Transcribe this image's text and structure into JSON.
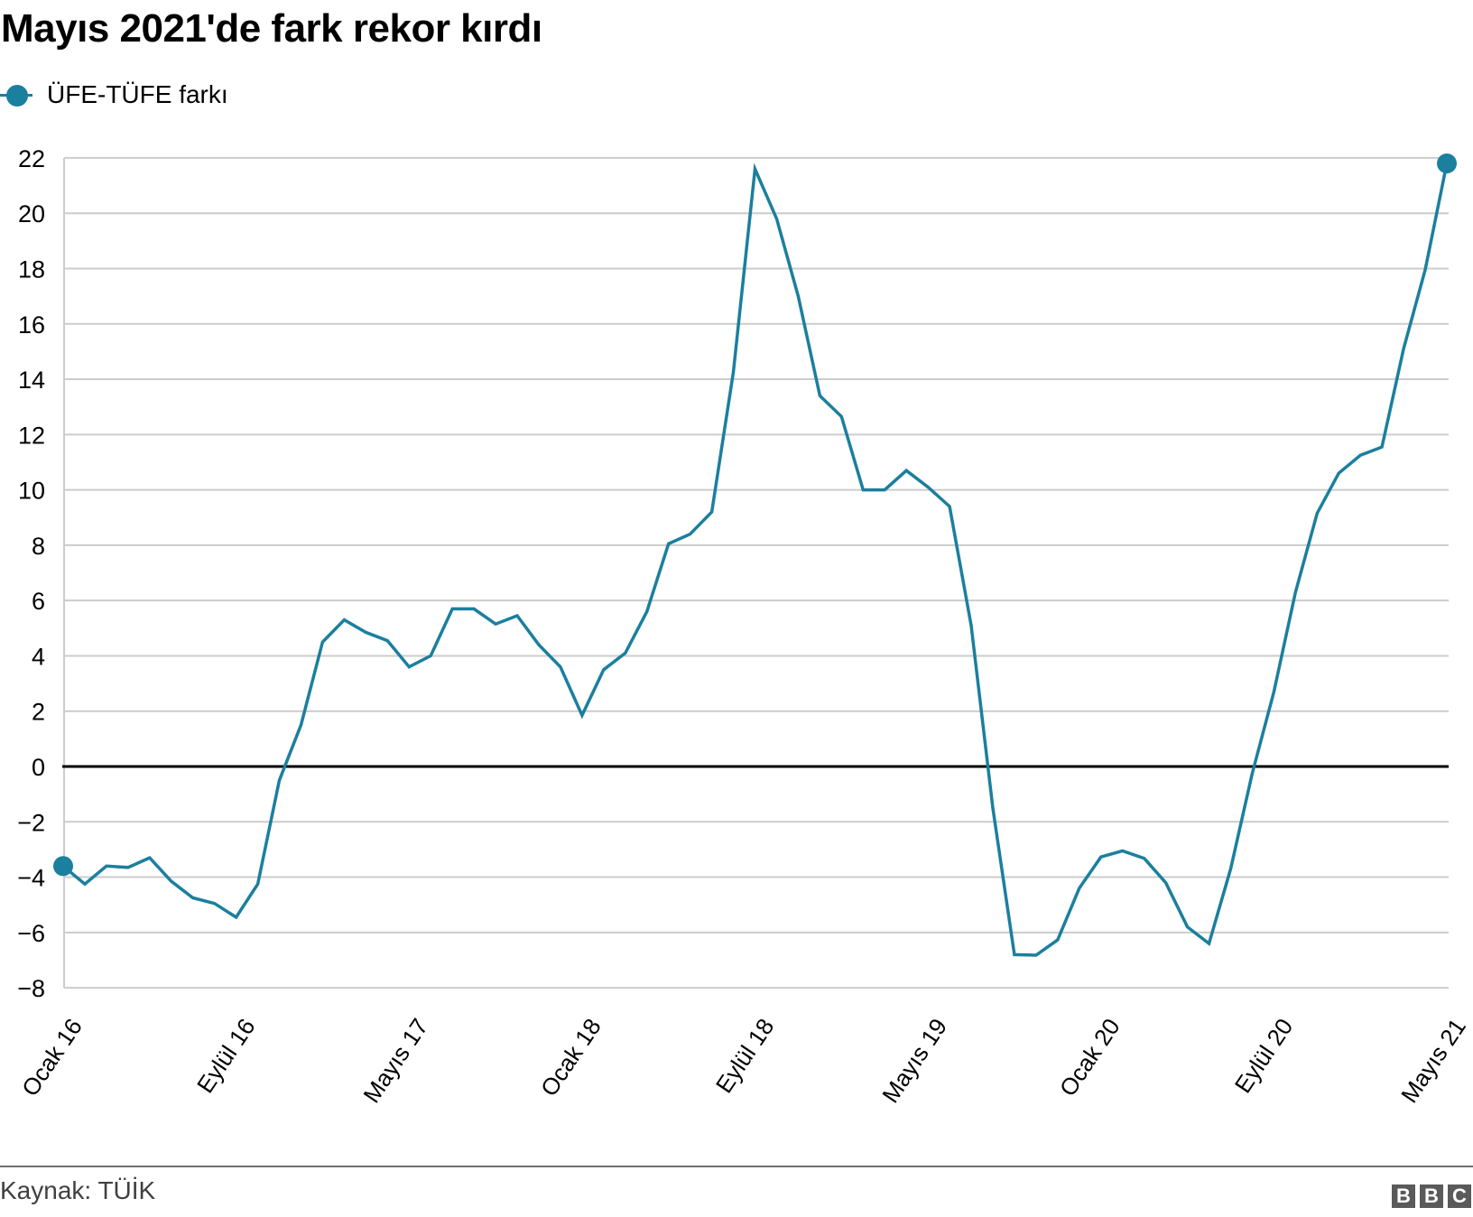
{
  "title": "Mayıs 2021'de fark rekor kırdı",
  "legend": {
    "label": "ÜFE-TÜFE farkı",
    "color": "#1b7f9e"
  },
  "footer": {
    "source": "Kaynak: TÜİK",
    "logo": [
      "B",
      "B",
      "C"
    ]
  },
  "colors": {
    "series": "#1b7f9e",
    "grid": "#cccccc",
    "zero": "#000000",
    "axis": "#cccccc"
  },
  "chart_data": {
    "type": "line",
    "title": "Mayıs 2021'de fark rekor kırdı",
    "xlabel": "",
    "ylabel": "",
    "ylim": [
      -8,
      22
    ],
    "yticks": [
      22,
      20,
      18,
      16,
      14,
      12,
      10,
      8,
      6,
      4,
      2,
      0,
      -2,
      -4,
      -6,
      -8
    ],
    "ytick_labels": [
      "22",
      "20",
      "18",
      "16",
      "14",
      "12",
      "10",
      "8",
      "6",
      "4",
      "2",
      "0",
      "−2",
      "−4",
      "−6",
      "−8"
    ],
    "xtick_labels": [
      "Ocak 16",
      "Eylül 16",
      "Mayıs 17",
      "Ocak 18",
      "Eylül 18",
      "Mayıs 19",
      "Ocak 20",
      "Eylül 20",
      "Mayıs 21"
    ],
    "xtick_index": [
      0,
      8,
      16,
      24,
      32,
      40,
      48,
      56,
      64
    ],
    "grid": true,
    "legend_position": "top-left",
    "markers_on": "first-and-last",
    "series": [
      {
        "name": "ÜFE-TÜFE farkı",
        "x": [
          "2016-01",
          "2016-02",
          "2016-03",
          "2016-04",
          "2016-05",
          "2016-06",
          "2016-07",
          "2016-08",
          "2016-09",
          "2016-10",
          "2016-11",
          "2016-12",
          "2017-01",
          "2017-02",
          "2017-03",
          "2017-04",
          "2017-05",
          "2017-06",
          "2017-07",
          "2017-08",
          "2017-09",
          "2017-10",
          "2017-11",
          "2017-12",
          "2018-01",
          "2018-02",
          "2018-03",
          "2018-04",
          "2018-05",
          "2018-06",
          "2018-07",
          "2018-08",
          "2018-09",
          "2018-10",
          "2018-11",
          "2018-12",
          "2019-01",
          "2019-02",
          "2019-03",
          "2019-04",
          "2019-05",
          "2019-06",
          "2019-07",
          "2019-08",
          "2019-09",
          "2019-10",
          "2019-11",
          "2019-12",
          "2020-01",
          "2020-02",
          "2020-03",
          "2020-04",
          "2020-05",
          "2020-06",
          "2020-07",
          "2020-08",
          "2020-09",
          "2020-10",
          "2020-11",
          "2020-12",
          "2021-01",
          "2021-02",
          "2021-03",
          "2021-04",
          "2021-05"
        ],
        "values": [
          -3.6,
          -4.25,
          -3.6,
          -3.65,
          -3.3,
          -4.15,
          -4.75,
          -4.95,
          -5.45,
          -4.25,
          -0.5,
          1.5,
          4.5,
          5.3,
          4.85,
          4.55,
          3.6,
          4.0,
          5.7,
          5.7,
          5.15,
          5.45,
          4.4,
          3.6,
          1.85,
          3.5,
          4.1,
          5.6,
          8.05,
          8.4,
          9.2,
          14.25,
          21.6,
          19.8,
          17.0,
          13.4,
          12.65,
          10.0,
          10.0,
          10.7,
          10.1,
          9.4,
          5.1,
          -1.5,
          -6.8,
          -6.82,
          -6.27,
          -4.4,
          -3.27,
          -3.05,
          -3.32,
          -4.2,
          -5.8,
          -6.4,
          -3.7,
          -0.25,
          2.7,
          6.3,
          9.15,
          10.6,
          11.25,
          11.55,
          15.1,
          17.95,
          21.8
        ]
      }
    ]
  }
}
